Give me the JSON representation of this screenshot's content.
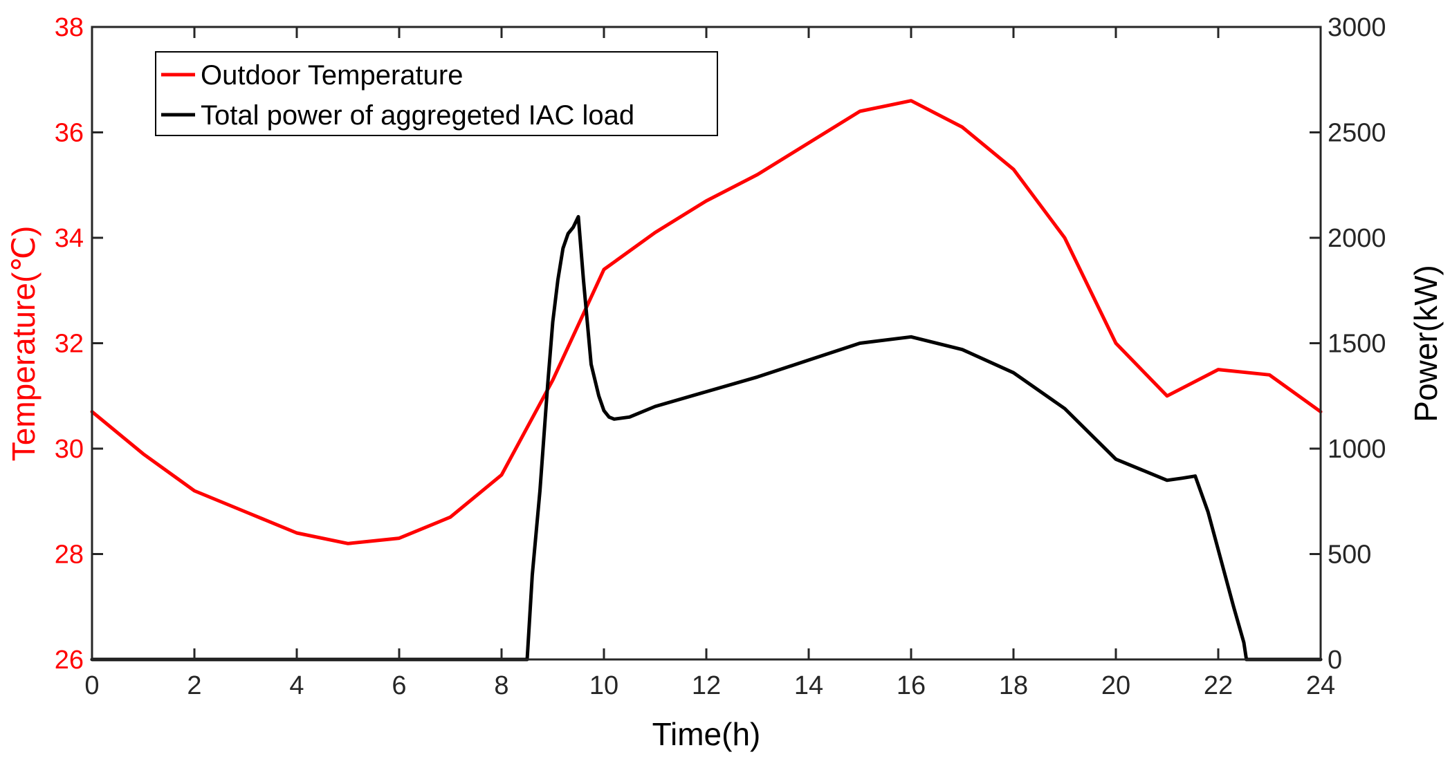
{
  "chart_data": {
    "type": "line",
    "xlabel": "Time(h)",
    "ylabel_left": "Temperature(℃)",
    "ylabel_right": "Power(kW)",
    "xlim": [
      0,
      24
    ],
    "ylim_left": [
      26,
      38
    ],
    "ylim_right": [
      0,
      3000
    ],
    "x_ticks": [
      "0",
      "2",
      "4",
      "6",
      "8",
      "10",
      "12",
      "14",
      "16",
      "18",
      "20",
      "22",
      "24"
    ],
    "y_left_ticks": [
      "26",
      "28",
      "30",
      "32",
      "34",
      "36",
      "38"
    ],
    "y_right_ticks": [
      "0",
      "500",
      "1000",
      "1500",
      "2000",
      "2500",
      "3000"
    ],
    "grid": false,
    "legend_position": "top-left",
    "series": [
      {
        "name": "Outdoor Temperature",
        "axis": "left",
        "color": "#ff0000",
        "x": [
          0,
          1,
          2,
          3,
          4,
          5,
          6,
          7,
          8,
          9,
          10,
          11,
          12,
          13,
          14,
          15,
          16,
          17,
          18,
          19,
          20,
          21,
          22,
          23,
          24
        ],
        "y": [
          30.7,
          29.9,
          29.2,
          28.8,
          28.4,
          28.2,
          28.3,
          28.7,
          29.5,
          31.3,
          33.4,
          34.1,
          34.7,
          35.2,
          35.8,
          36.4,
          36.6,
          36.1,
          35.3,
          34.0,
          32.0,
          31.0,
          31.5,
          31.4,
          30.7
        ]
      },
      {
        "name": "Total power of aggregeted IAC load",
        "axis": "right",
        "color": "#000000",
        "x": [
          0,
          8.5,
          8.6,
          8.75,
          8.9,
          9.0,
          9.1,
          9.2,
          9.3,
          9.4,
          9.5,
          9.6,
          9.75,
          9.9,
          10.0,
          10.1,
          10.2,
          10.5,
          11,
          12,
          13,
          14,
          15,
          16,
          17,
          18,
          19,
          20,
          21,
          21.3,
          21.55,
          21.8,
          22.0,
          22.3,
          22.5,
          22.55,
          24
        ],
        "y": [
          0,
          0,
          400,
          800,
          1300,
          1600,
          1800,
          1950,
          2020,
          2050,
          2100,
          1800,
          1400,
          1250,
          1180,
          1150,
          1140,
          1150,
          1200,
          1270,
          1340,
          1420,
          1500,
          1530,
          1470,
          1360,
          1190,
          950,
          850,
          860,
          870,
          700,
          520,
          250,
          80,
          0,
          0
        ]
      }
    ]
  }
}
